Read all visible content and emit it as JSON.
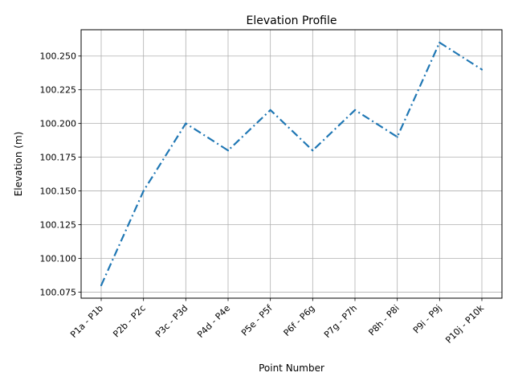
{
  "chart_data": {
    "type": "line",
    "title": "Elevation Profile",
    "xlabel": "Point Number",
    "ylabel": "Elevation (m)",
    "categories": [
      "P1a - P1b",
      "P2b - P2c",
      "P3c - P3d",
      "P4d - P4e",
      "P5e - P5f",
      "P6f - P6g",
      "P7g - P7h",
      "P8h - P8i",
      "P9i - P9j",
      "P10j - P10k"
    ],
    "series": [
      {
        "values": [
          100.08,
          100.15,
          100.2,
          100.18,
          100.21,
          100.18,
          100.21,
          100.19,
          100.26,
          100.24
        ],
        "color": "#1f77b4",
        "line_style": "dash-dot"
      }
    ],
    "ylim": [
      100.0705,
      100.2695
    ],
    "yticks": [
      "100.075",
      "100.100",
      "100.125",
      "100.150",
      "100.175",
      "100.200",
      "100.225",
      "100.250"
    ],
    "grid": true
  }
}
